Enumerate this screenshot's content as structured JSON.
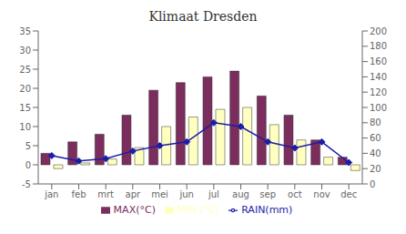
{
  "chart_data": {
    "type": "bar",
    "title": "Klimaat Dresden",
    "categories": [
      "jan",
      "feb",
      "mrt",
      "apr",
      "mei",
      "jun",
      "jul",
      "aug",
      "sep",
      "oct",
      "nov",
      "dec"
    ],
    "series": [
      {
        "name": "MAX(°C)",
        "color": "#7B2D5E",
        "values": [
          3,
          6,
          8,
          13,
          19.5,
          21.5,
          23,
          24.5,
          18,
          13,
          6.5,
          2
        ]
      },
      {
        "name": "MIN (°C)",
        "color": "#FFFFC0",
        "values": [
          -1,
          0.5,
          1.5,
          4.5,
          10,
          12.5,
          14.5,
          15,
          10.5,
          6.5,
          2,
          -1.5
        ]
      },
      {
        "name": "RAIN(mm)",
        "color": "#1C1CA8",
        "type": "line",
        "axis": "y2",
        "marker": "diamond",
        "values": [
          37,
          30,
          33,
          43,
          50,
          55,
          80,
          75,
          55,
          47,
          55,
          28
        ]
      }
    ],
    "ylim": [
      -5,
      35
    ],
    "yticks": [
      -5,
      0,
      5,
      10,
      15,
      20,
      25,
      30,
      35
    ],
    "y2lim": [
      0,
      200
    ],
    "y2ticks": [
      0,
      20,
      40,
      60,
      80,
      100,
      120,
      140,
      160,
      180,
      200
    ],
    "grid": false,
    "legend": "bottom"
  }
}
